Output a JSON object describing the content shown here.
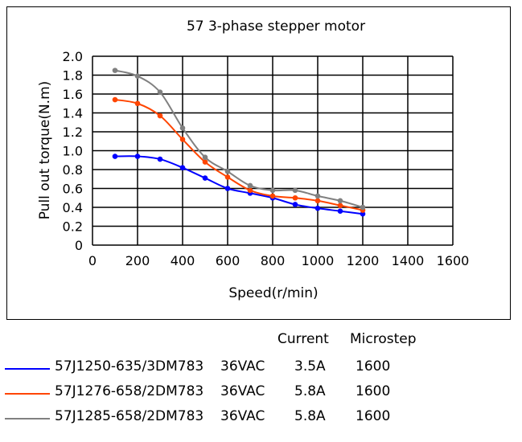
{
  "chart_data": {
    "type": "line",
    "title": "57 3-phase stepper motor",
    "xlabel": "Speed(r/min)",
    "ylabel": "Pull out torque(N.m)",
    "xlim": [
      0,
      1600
    ],
    "ylim": [
      0,
      2.0
    ],
    "xticks": [
      "0",
      "200",
      "400",
      "600",
      "800",
      "1000",
      "1200",
      "1400",
      "1600"
    ],
    "yticks": [
      "0",
      "0.2",
      "0.4",
      "0.6",
      "0.8",
      "1.0",
      "1.2",
      "1.4",
      "1.6",
      "1.8",
      "2.0"
    ],
    "grid": true,
    "x": [
      100,
      200,
      300,
      400,
      500,
      600,
      700,
      800,
      900,
      1000,
      1100,
      1200
    ],
    "series": [
      {
        "name": "57J1250-635/3DM783",
        "color": "#0000ff",
        "values": [
          0.94,
          0.94,
          0.91,
          0.82,
          0.71,
          0.6,
          0.55,
          0.5,
          0.43,
          0.39,
          0.36,
          0.33
        ]
      },
      {
        "name": "57J1276-658/2DM783",
        "color": "#ff4500",
        "values": [
          1.54,
          1.5,
          1.37,
          1.12,
          0.88,
          0.72,
          0.58,
          0.52,
          0.5,
          0.47,
          0.42,
          0.37
        ]
      },
      {
        "name": "57J1285-658/2DM783",
        "color": "#808080",
        "values": [
          1.85,
          1.79,
          1.62,
          1.24,
          0.93,
          0.78,
          0.63,
          0.58,
          0.58,
          0.52,
          0.47,
          0.4
        ]
      }
    ]
  },
  "legend": {
    "current_header": "Current",
    "microstep_header": "Microstep",
    "rows": [
      {
        "model": "57J1250-635/3DM783",
        "voltage": "36VAC",
        "current": "3.5A",
        "microstep": "1600"
      },
      {
        "model": "57J1276-658/2DM783",
        "voltage": "36VAC",
        "current": "5.8A",
        "microstep": "1600"
      },
      {
        "model": "57J1285-658/2DM783",
        "voltage": "36VAC",
        "current": "5.8A",
        "microstep": "1600"
      }
    ]
  }
}
